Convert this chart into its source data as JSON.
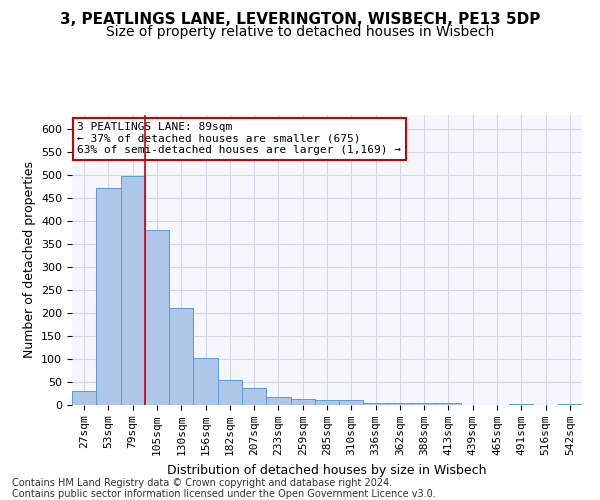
{
  "title_line1": "3, PEATLINGS LANE, LEVERINGTON, WISBECH, PE13 5DP",
  "title_line2": "Size of property relative to detached houses in Wisbech",
  "xlabel": "Distribution of detached houses by size in Wisbech",
  "ylabel": "Number of detached properties",
  "categories": [
    "27sqm",
    "53sqm",
    "79sqm",
    "105sqm",
    "130sqm",
    "156sqm",
    "182sqm",
    "207sqm",
    "233sqm",
    "259sqm",
    "285sqm",
    "310sqm",
    "336sqm",
    "362sqm",
    "388sqm",
    "413sqm",
    "439sqm",
    "465sqm",
    "491sqm",
    "516sqm",
    "542sqm"
  ],
  "values": [
    30,
    472,
    497,
    380,
    210,
    103,
    55,
    37,
    18,
    13,
    10,
    10,
    5,
    4,
    5,
    5,
    1,
    0,
    3,
    1,
    3
  ],
  "bar_color": "#aec6e8",
  "bar_edge_color": "#5a9ad5",
  "grid_color": "#d0d8e8",
  "bg_color": "#f5f7fc",
  "vline_color": "#cc0000",
  "annotation_text": "3 PEATLINGS LANE: 89sqm\n← 37% of detached houses are smaller (675)\n63% of semi-detached houses are larger (1,169) →",
  "annotation_box_color": "#ffffff",
  "annotation_edge_color": "#cc0000",
  "ylim": [
    0,
    630
  ],
  "yticks": [
    0,
    50,
    100,
    150,
    200,
    250,
    300,
    350,
    400,
    450,
    500,
    550,
    600
  ],
  "footnote": "Contains HM Land Registry data © Crown copyright and database right 2024.\nContains public sector information licensed under the Open Government Licence v3.0.",
  "title_fontsize": 11,
  "subtitle_fontsize": 10,
  "axis_label_fontsize": 9,
  "tick_fontsize": 8,
  "annotation_fontsize": 8,
  "footnote_fontsize": 7
}
